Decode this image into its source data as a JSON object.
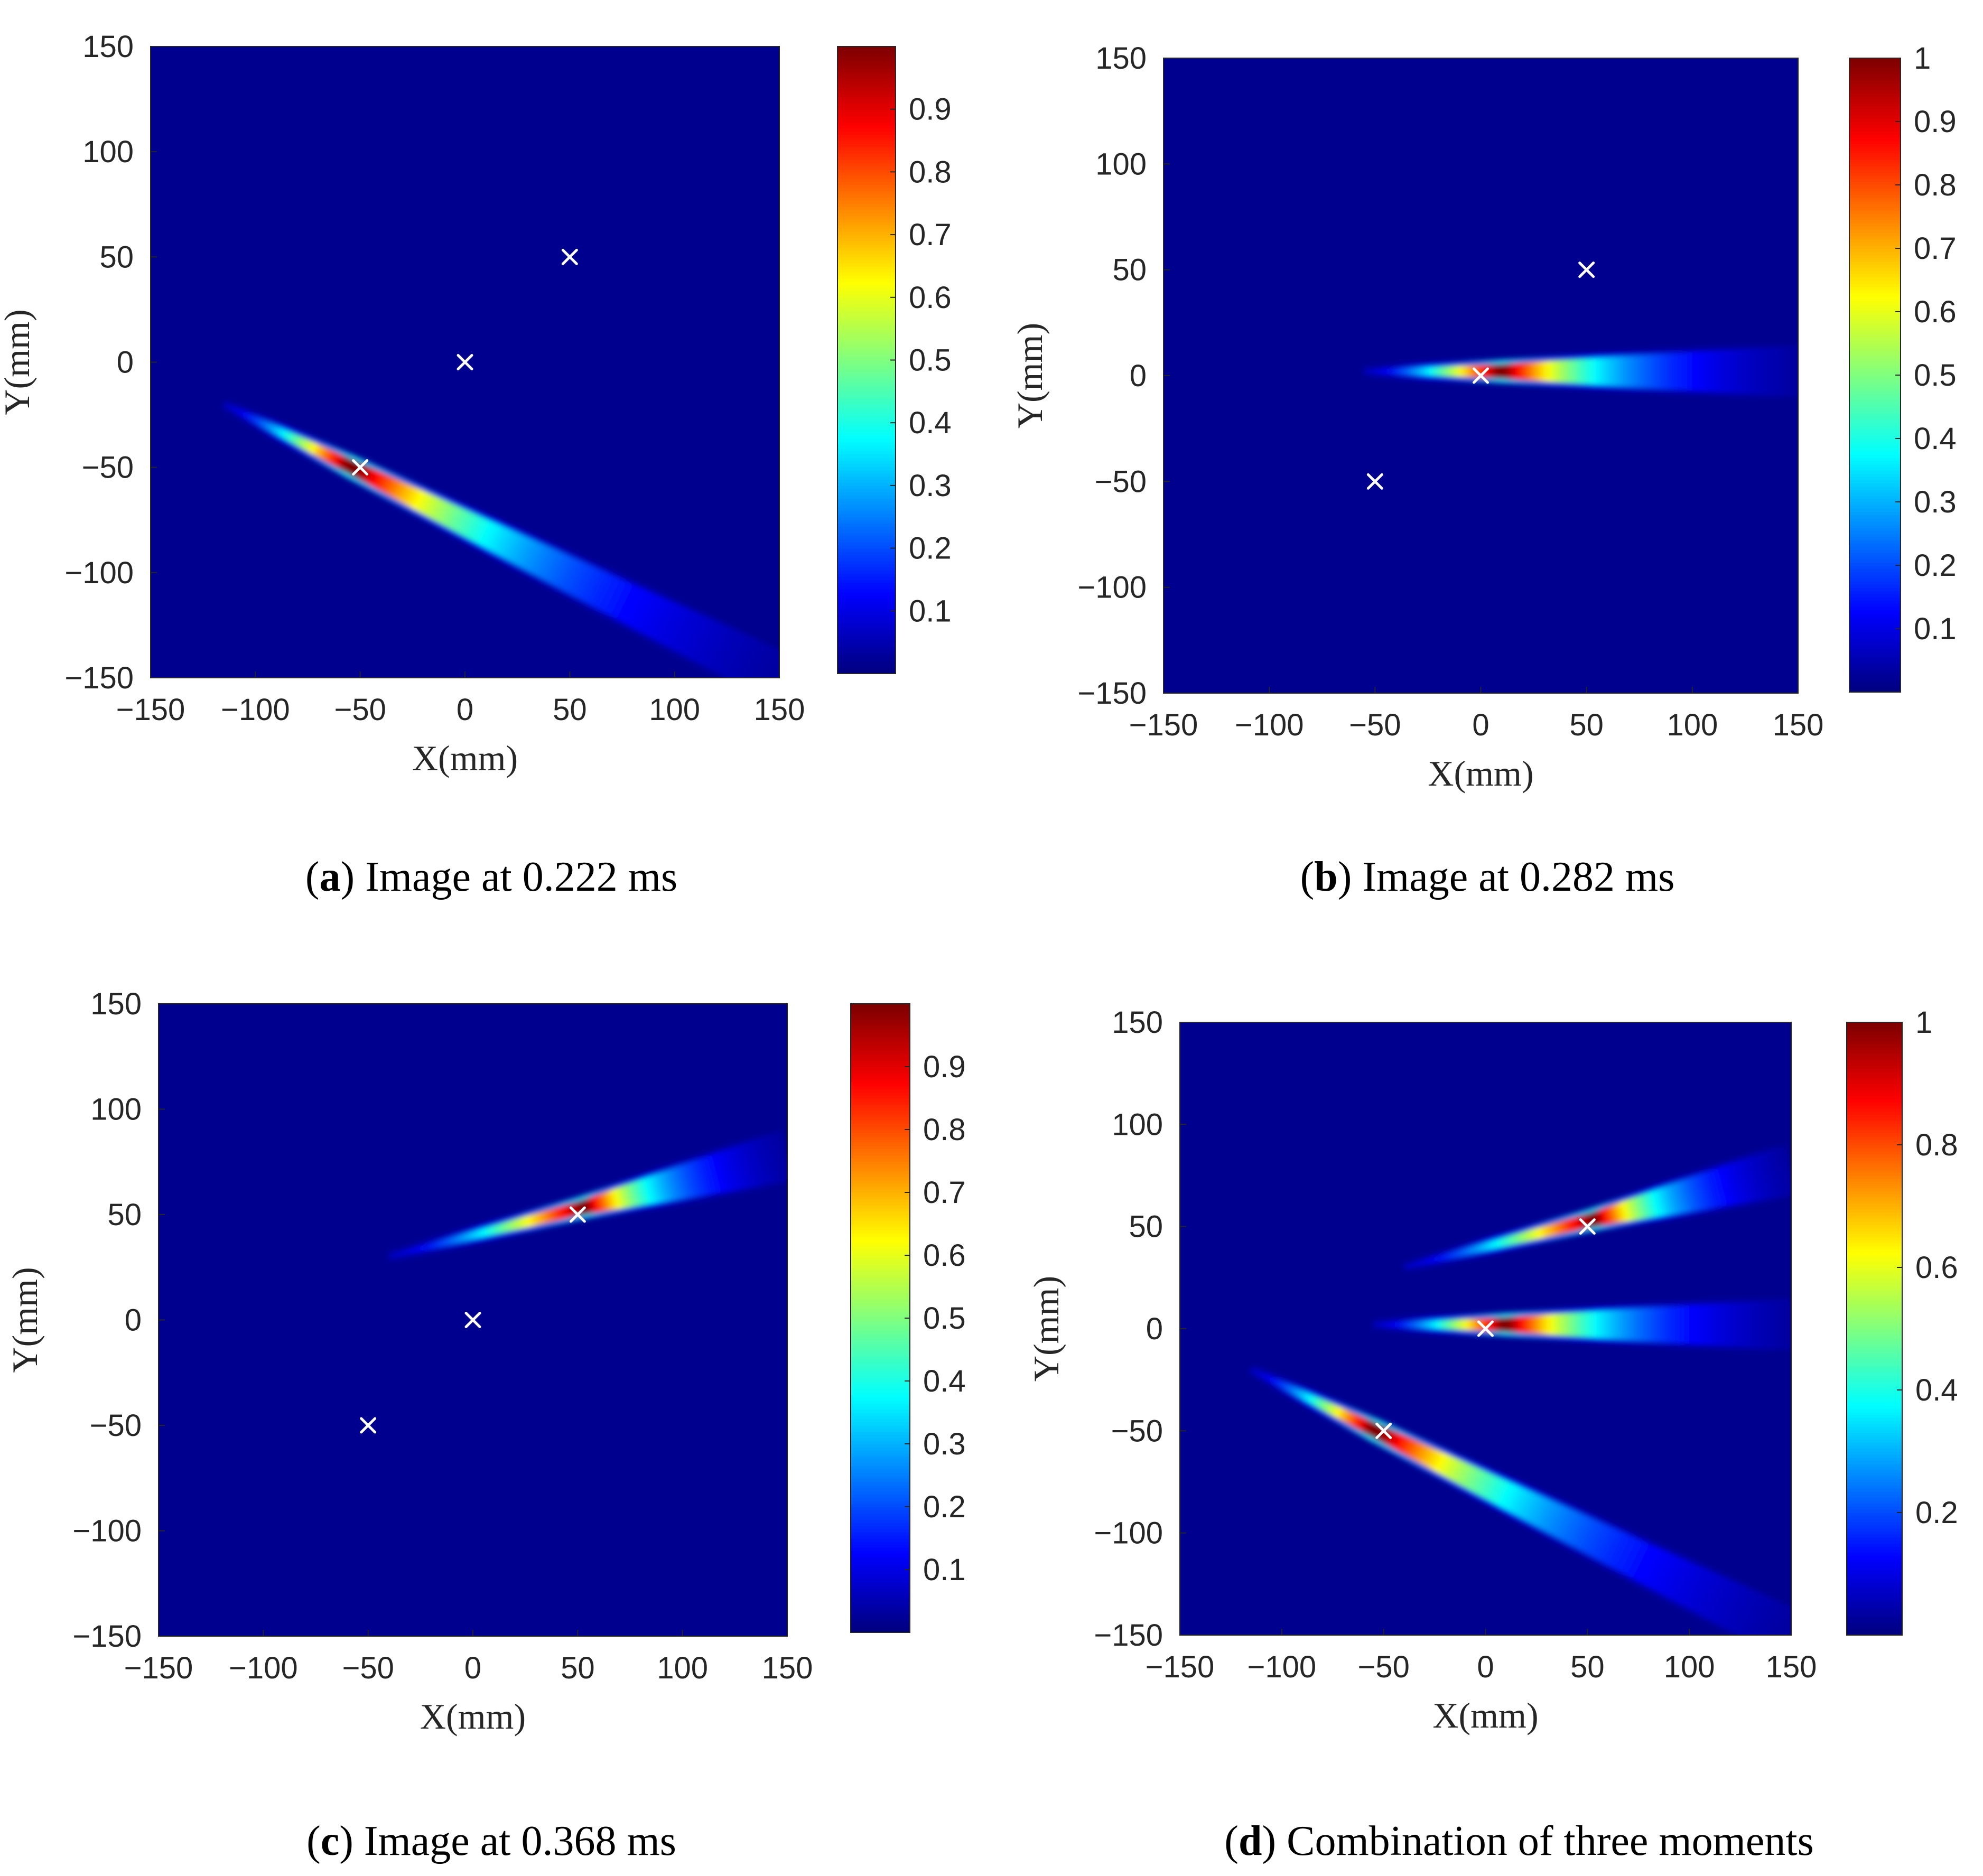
{
  "figure": {
    "panels": [
      {
        "id": "a",
        "caption_letter": "a",
        "caption_text": " Image at 0.222 ms",
        "chart_data": {
          "type": "heatmap",
          "title": "Image at 0.222 ms",
          "xlabel": "X(mm)",
          "ylabel": "Y(mm)",
          "xlim": [
            -150,
            150
          ],
          "ylim": [
            -150,
            150
          ],
          "xticks": [
            -150,
            -100,
            -50,
            0,
            50,
            100,
            150
          ],
          "yticks": [
            -150,
            -100,
            -50,
            0,
            50,
            100,
            150
          ],
          "colorbar": {
            "range": [
              0,
              1
            ],
            "ticks": [
              0.1,
              0.2,
              0.3,
              0.4,
              0.5,
              0.6,
              0.7,
              0.8,
              0.9
            ],
            "colormap": "jet"
          },
          "markers": [
            {
              "x": -50,
              "y": -50,
              "symbol": "x",
              "color": "#ffffff"
            },
            {
              "x": 0,
              "y": 0,
              "symbol": "x",
              "color": "#ffffff"
            },
            {
              "x": 50,
              "y": 50,
              "symbol": "x",
              "color": "#ffffff"
            }
          ],
          "streaks": [
            {
              "start": [
                -115,
                -20
              ],
              "end": [
                150,
                -150
              ],
              "peak": [
                -55,
                -46
              ],
              "peak_value": 1.0
            }
          ]
        }
      },
      {
        "id": "b",
        "caption_letter": "b",
        "caption_text": " Image at 0.282 ms",
        "chart_data": {
          "type": "heatmap",
          "title": "Image at 0.282 ms",
          "xlabel": "X(mm)",
          "ylabel": "Y(mm)",
          "xlim": [
            -150,
            150
          ],
          "ylim": [
            -150,
            150
          ],
          "xticks": [
            -150,
            -100,
            -50,
            0,
            50,
            100,
            150
          ],
          "yticks": [
            -150,
            -100,
            -50,
            0,
            50,
            100,
            150
          ],
          "colorbar": {
            "range": [
              0,
              1
            ],
            "ticks": [
              0.1,
              0.2,
              0.3,
              0.4,
              0.5,
              0.6,
              0.7,
              0.8,
              0.9,
              1
            ],
            "colormap": "jet"
          },
          "markers": [
            {
              "x": -50,
              "y": -50,
              "symbol": "x",
              "color": "#ffffff"
            },
            {
              "x": 0,
              "y": 0,
              "symbol": "x",
              "color": "#ffffff"
            },
            {
              "x": 50,
              "y": 50,
              "symbol": "x",
              "color": "#ffffff"
            }
          ],
          "streaks": [
            {
              "start": [
                -55,
                2
              ],
              "end": [
                150,
                2
              ],
              "peak": [
                8,
                1
              ],
              "peak_value": 1.0
            }
          ]
        }
      },
      {
        "id": "c",
        "caption_letter": "c",
        "caption_text": " Image at 0.368 ms",
        "chart_data": {
          "type": "heatmap",
          "title": "Image at 0.368 ms",
          "xlabel": "X(mm)",
          "ylabel": "Y(mm)",
          "xlim": [
            -150,
            150
          ],
          "ylim": [
            -150,
            150
          ],
          "xticks": [
            -150,
            -100,
            -50,
            0,
            50,
            100,
            150
          ],
          "yticks": [
            -150,
            -100,
            -50,
            0,
            50,
            100,
            150
          ],
          "colorbar": {
            "range": [
              0,
              1
            ],
            "ticks": [
              0.1,
              0.2,
              0.3,
              0.4,
              0.5,
              0.6,
              0.7,
              0.8,
              0.9
            ],
            "colormap": "jet"
          },
          "markers": [
            {
              "x": -50,
              "y": -50,
              "symbol": "x",
              "color": "#ffffff"
            },
            {
              "x": 0,
              "y": 0,
              "symbol": "x",
              "color": "#ffffff"
            },
            {
              "x": 50,
              "y": 50,
              "symbol": "x",
              "color": "#ffffff"
            }
          ],
          "streaks": [
            {
              "start": [
                -40,
                30
              ],
              "end": [
                150,
                78
              ],
              "peak": [
                52,
                53
              ],
              "peak_value": 1.0
            }
          ]
        }
      },
      {
        "id": "d",
        "caption_letter": "d",
        "caption_text": " Combination of three moments",
        "chart_data": {
          "type": "heatmap",
          "title": "Combination of three moments",
          "xlabel": "X(mm)",
          "ylabel": "Y(mm)",
          "xlim": [
            -150,
            150
          ],
          "ylim": [
            -150,
            150
          ],
          "xticks": [
            -150,
            -100,
            -50,
            0,
            50,
            100,
            150
          ],
          "yticks": [
            -150,
            -100,
            -50,
            0,
            50,
            100,
            150
          ],
          "colorbar": {
            "range": [
              0,
              1
            ],
            "ticks": [
              0.2,
              0.4,
              0.6,
              0.8,
              1
            ],
            "colormap": "jet"
          },
          "markers": [
            {
              "x": -50,
              "y": -50,
              "symbol": "x",
              "color": "#ffffff"
            },
            {
              "x": 0,
              "y": 0,
              "symbol": "x",
              "color": "#ffffff"
            },
            {
              "x": 50,
              "y": 50,
              "symbol": "x",
              "color": "#ffffff"
            }
          ],
          "streaks": [
            {
              "start": [
                -115,
                -20
              ],
              "end": [
                150,
                -150
              ],
              "peak": [
                -55,
                -46
              ],
              "peak_value": 1.0
            },
            {
              "start": [
                -55,
                2
              ],
              "end": [
                150,
                2
              ],
              "peak": [
                8,
                1
              ],
              "peak_value": 1.0
            },
            {
              "start": [
                -40,
                30
              ],
              "end": [
                150,
                78
              ],
              "peak": [
                52,
                53
              ],
              "peak_value": 1.0
            }
          ]
        }
      }
    ]
  }
}
